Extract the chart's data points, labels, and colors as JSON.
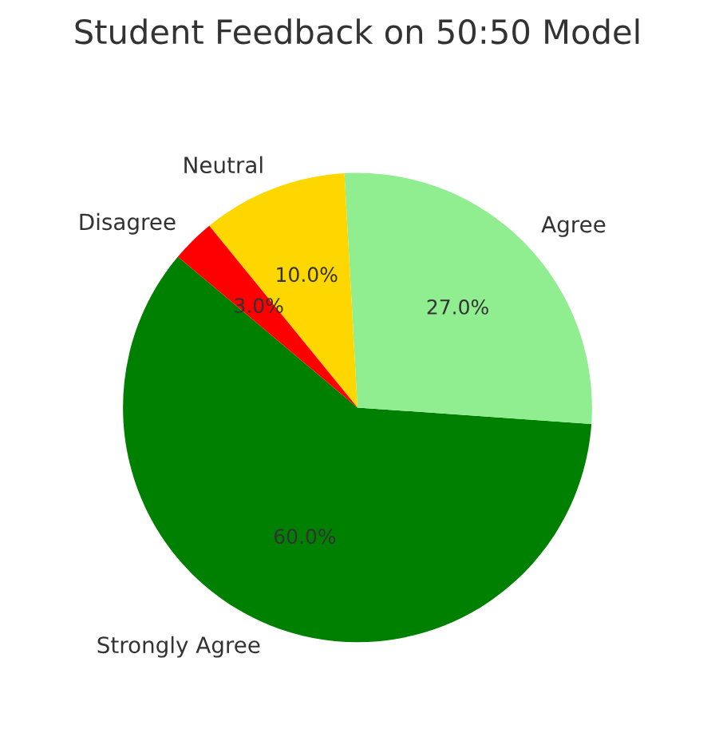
{
  "chart_data": {
    "type": "pie",
    "title": "Student Feedback on 50:50 Model",
    "categories": [
      "Strongly Agree",
      "Agree",
      "Neutral",
      "Disagree"
    ],
    "values": [
      60,
      27,
      10,
      3
    ],
    "colors": [
      "#008000",
      "#90ee90",
      "#ffd700",
      "#ff0000"
    ],
    "value_labels": [
      "60.0%",
      "27.0%",
      "10.0%",
      "3.0%"
    ]
  }
}
